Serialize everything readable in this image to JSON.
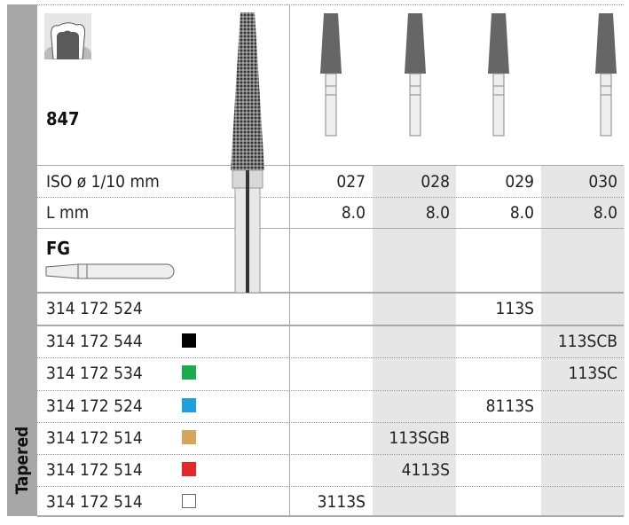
{
  "sidebar_label": "Tapered",
  "product": {
    "shape_code": "847",
    "shank_type": "FG",
    "icons": [
      "tooth-crown-icon",
      "fg-shank-icon",
      "diamond-bur-image"
    ]
  },
  "size_table": {
    "iso_label": "ISO ø 1/10 mm",
    "length_label": "L mm",
    "iso_sizes": [
      "027",
      "028",
      "029",
      "030"
    ],
    "lengths": [
      "8.0",
      "8.0",
      "8.0",
      "8.0"
    ]
  },
  "rows": [
    {
      "ref": "314 172 524",
      "color": null,
      "codes": [
        "",
        "",
        "113S",
        ""
      ]
    },
    {
      "ref": "314 172 544",
      "color": "#000000",
      "codes": [
        "",
        "",
        "",
        "113SCB"
      ]
    },
    {
      "ref": "314 172 534",
      "color": "#1aab4b",
      "codes": [
        "",
        "",
        "",
        "113SC"
      ]
    },
    {
      "ref": "314 172 524",
      "color": "#1f9ee0",
      "codes": [
        "",
        "",
        "8113S",
        ""
      ]
    },
    {
      "ref": "314 172 514",
      "color": "#d4a55a",
      "codes": [
        "",
        "113SGB",
        "",
        ""
      ]
    },
    {
      "ref": "314 172 514",
      "color": "#e5262b",
      "codes": [
        "",
        "4113S",
        "",
        ""
      ]
    },
    {
      "ref": "314 172 514",
      "color": "#ffffff",
      "codes": [
        "3113S",
        "",
        "",
        ""
      ]
    }
  ]
}
